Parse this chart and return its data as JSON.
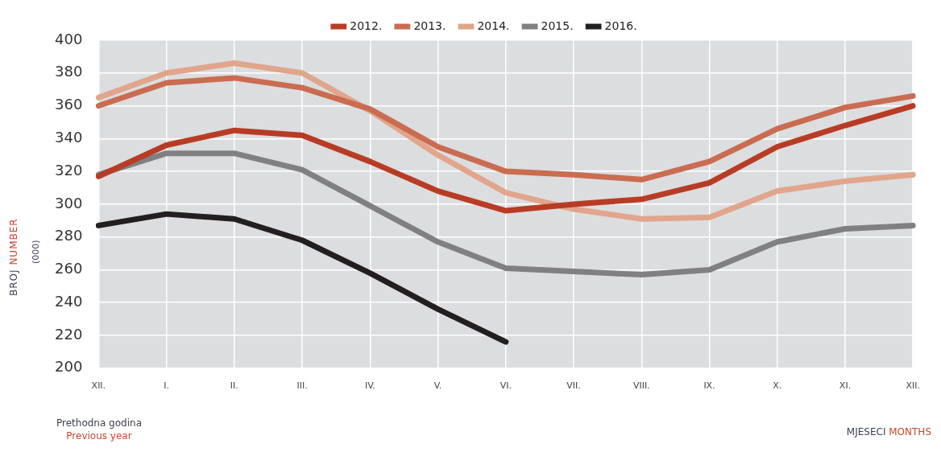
{
  "chart_data": {
    "type": "line",
    "categories": [
      "XII.",
      "I.",
      "II.",
      "III.",
      "IV.",
      "V.",
      "VI.",
      "VII.",
      "VIII.",
      "IX.",
      "X.",
      "XI.",
      "XII."
    ],
    "series": [
      {
        "name": "2012.",
        "color": "#b83c25",
        "values": [
          317,
          336,
          345,
          342,
          326,
          308,
          296,
          300,
          303,
          313,
          335,
          348,
          360
        ]
      },
      {
        "name": "2013.",
        "color": "#c96c50",
        "values": [
          360,
          374,
          377,
          371,
          358,
          335,
          320,
          318,
          315,
          326,
          346,
          359,
          366
        ]
      },
      {
        "name": "2014.",
        "color": "#e0a58b",
        "values": [
          365,
          380,
          386,
          380,
          357,
          330,
          307,
          297,
          291,
          292,
          308,
          314,
          318
        ]
      },
      {
        "name": "2015.",
        "color": "#808083",
        "values": [
          318,
          331,
          331,
          321,
          299,
          277,
          261,
          259,
          257,
          260,
          277,
          285,
          287
        ]
      },
      {
        "name": "2016.",
        "color": "#231f20",
        "values": [
          287,
          294,
          291,
          278,
          258,
          236,
          216,
          null,
          null,
          null,
          null,
          null,
          null
        ]
      }
    ],
    "ylim": [
      200,
      400
    ],
    "yticks": [
      200,
      220,
      240,
      260,
      280,
      300,
      320,
      340,
      360,
      380,
      400
    ],
    "ylabel": "BROJ NUMBER",
    "xlabel": "MJESECI MONTHS",
    "annotations": [
      "(000)",
      "Prethodna godina",
      "Previous year"
    ],
    "grid": true,
    "legend": "top",
    "marker": "none",
    "line_style": "solid"
  }
}
